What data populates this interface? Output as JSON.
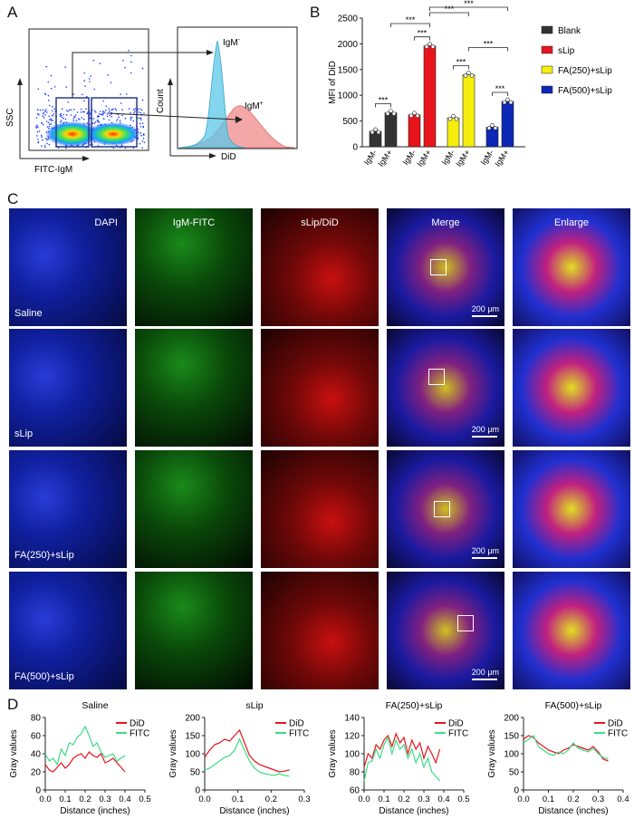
{
  "panels": {
    "a": "A",
    "b": "B",
    "c": "C",
    "d": "D"
  },
  "panel_a": {
    "scatter_ylabel": "SSC",
    "scatter_xlabel": "FITC-IgM",
    "hist_ylabel": "Count",
    "hist_xlabel": "DiD",
    "igm_neg": "IgM",
    "igm_neg_sup": "-",
    "igm_pos": "IgM",
    "igm_pos_sup": "+",
    "colors": {
      "neg": "#5bc8e8",
      "pos": "#f08a8a"
    }
  },
  "chart_data": [
    {
      "type": "bar",
      "ylabel": "MFI of DiD",
      "ylim": [
        0,
        2500
      ],
      "yticks": [
        0,
        500,
        1000,
        1500,
        2000,
        2500
      ],
      "categories": [
        "IgM-",
        "IgM+",
        "IgM-",
        "IgM+",
        "IgM-",
        "IgM+",
        "IgM-",
        "IgM+"
      ],
      "values": [
        300,
        660,
        620,
        1960,
        560,
        1400,
        380,
        880
      ],
      "bar_colors": [
        "#333333",
        "#333333",
        "#e8141b",
        "#e8141b",
        "#f5ee0c",
        "#f5ee0c",
        "#0c28b5",
        "#0c28b5"
      ],
      "significance": "***",
      "legend": [
        {
          "name": "Blank",
          "color": "#333333"
        },
        {
          "name": "sLip",
          "color": "#e8141b"
        },
        {
          "name": "FA(250)+sLip",
          "color": "#f5ee0c"
        },
        {
          "name": "FA(500)+sLip",
          "color": "#0c28b5"
        }
      ],
      "legend_position": "right"
    },
    {
      "type": "line",
      "title": "Saline",
      "xlabel": "Distance (inches)",
      "ylabel": "Gray values",
      "xlim": [
        0,
        0.5
      ],
      "ylim": [
        0,
        80
      ],
      "xticks": [
        "0.0",
        "0.1",
        "0.2",
        "0.3",
        "0.4",
        "0.5"
      ],
      "yticks": [
        "0",
        "20",
        "40",
        "60",
        "80"
      ],
      "x": [
        0,
        0.02,
        0.04,
        0.06,
        0.08,
        0.1,
        0.12,
        0.14,
        0.16,
        0.18,
        0.2,
        0.22,
        0.24,
        0.26,
        0.28,
        0.3,
        0.32,
        0.34,
        0.36,
        0.38,
        0.4
      ],
      "series": [
        {
          "name": "DiD",
          "color": "#e8141b",
          "values": [
            28,
            22,
            20,
            25,
            30,
            24,
            28,
            35,
            38,
            40,
            35,
            42,
            38,
            36,
            40,
            30,
            32,
            35,
            30,
            25,
            20
          ]
        },
        {
          "name": "FITC",
          "color": "#3ddc84",
          "values": [
            40,
            32,
            35,
            28,
            45,
            38,
            52,
            50,
            58,
            62,
            70,
            60,
            48,
            52,
            42,
            36,
            38,
            40,
            32,
            35,
            38
          ]
        }
      ],
      "legend_position": "top-right"
    },
    {
      "type": "line",
      "title": "sLip",
      "xlabel": "Distance (inches)",
      "ylabel": "Gray values",
      "xlim": [
        0,
        0.3
      ],
      "ylim": [
        0,
        200
      ],
      "xticks": [
        "0.0",
        "0.1",
        "0.2",
        "0.3"
      ],
      "yticks": [
        "0",
        "50",
        "100",
        "150",
        "200"
      ],
      "x": [
        0,
        0.015,
        0.03,
        0.045,
        0.06,
        0.075,
        0.09,
        0.105,
        0.12,
        0.135,
        0.15,
        0.165,
        0.18,
        0.195,
        0.21,
        0.225,
        0.24,
        0.255
      ],
      "series": [
        {
          "name": "DiD",
          "color": "#e8141b",
          "values": [
            90,
            110,
            125,
            130,
            140,
            135,
            150,
            165,
            130,
            95,
            80,
            70,
            65,
            60,
            55,
            50,
            52,
            55
          ]
        },
        {
          "name": "FITC",
          "color": "#3ddc84",
          "values": [
            55,
            60,
            70,
            80,
            90,
            95,
            110,
            140,
            110,
            80,
            60,
            50,
            45,
            42,
            40,
            45,
            40,
            38
          ]
        }
      ],
      "legend_position": "top-right"
    },
    {
      "type": "line",
      "title": "FA(250)+sLip",
      "xlabel": "Distance (inches)",
      "ylabel": "Gray values",
      "xlim": [
        0,
        0.5
      ],
      "ylim": [
        60,
        140
      ],
      "xticks": [
        "0.0",
        "0.1",
        "0.2",
        "0.3",
        "0.4",
        "0.5"
      ],
      "yticks": [
        "60",
        "80",
        "100",
        "120",
        "140"
      ],
      "x": [
        0,
        0.02,
        0.04,
        0.06,
        0.08,
        0.1,
        0.12,
        0.14,
        0.16,
        0.18,
        0.2,
        0.22,
        0.24,
        0.26,
        0.28,
        0.3,
        0.32,
        0.34,
        0.36,
        0.38
      ],
      "series": [
        {
          "name": "DiD",
          "color": "#e8141b",
          "values": [
            85,
            100,
            95,
            110,
            105,
            115,
            120,
            108,
            122,
            112,
            118,
            100,
            115,
            105,
            112,
            95,
            108,
            100,
            90,
            105
          ]
        },
        {
          "name": "FITC",
          "color": "#3ddc84",
          "values": [
            70,
            90,
            92,
            105,
            95,
            110,
            118,
            100,
            115,
            105,
            110,
            95,
            105,
            90,
            100,
            85,
            95,
            80,
            75,
            70
          ]
        }
      ],
      "legend_position": "top-right"
    },
    {
      "type": "line",
      "title": "FA(500)+sLip",
      "xlabel": "Distance (inches)",
      "ylabel": "Gray values",
      "xlim": [
        0,
        0.4
      ],
      "ylim": [
        0,
        200
      ],
      "xticks": [
        "0.0",
        "0.1",
        "0.2",
        "0.3",
        "0.4"
      ],
      "yticks": [
        "0",
        "50",
        "100",
        "150",
        "200"
      ],
      "x": [
        0,
        0.02,
        0.04,
        0.06,
        0.08,
        0.1,
        0.12,
        0.14,
        0.16,
        0.18,
        0.2,
        0.22,
        0.24,
        0.26,
        0.28,
        0.3,
        0.32,
        0.34
      ],
      "series": [
        {
          "name": "DiD",
          "color": "#e8141b",
          "values": [
            140,
            150,
            145,
            130,
            120,
            110,
            105,
            100,
            110,
            115,
            125,
            120,
            115,
            110,
            120,
            105,
            85,
            80
          ]
        },
        {
          "name": "FITC",
          "color": "#3ddc84",
          "values": [
            130,
            140,
            150,
            120,
            110,
            100,
            95,
            105,
            100,
            110,
            130,
            115,
            110,
            105,
            115,
            100,
            90,
            85
          ]
        }
      ],
      "legend_position": "top-right"
    }
  ],
  "panel_c": {
    "columns": [
      "DAPI",
      "IgM-FITC",
      "sLip/DiD",
      "Merge",
      "Enlarge"
    ],
    "rows": [
      "Saline",
      "sLip",
      "FA(250)+sLip",
      "FA(500)+sLip"
    ],
    "scale_bar": "200 μm"
  }
}
